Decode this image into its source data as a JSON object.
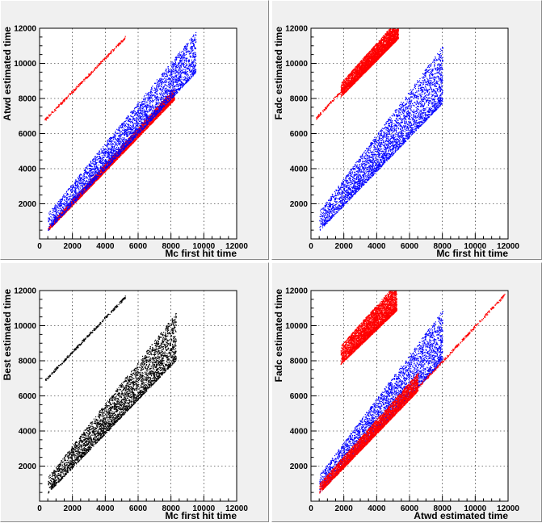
{
  "chart_data": [
    {
      "type": "scatter",
      "title": "",
      "xlabel": "Mc first hit time",
      "ylabel": "Atwd estimated time",
      "xlim": [
        0,
        12000
      ],
      "ylim": [
        0,
        12000
      ],
      "xticks": [
        "0",
        "2000",
        "4000",
        "6000",
        "8000",
        "10000",
        "12000"
      ],
      "yticks": [
        "2000",
        "4000",
        "6000",
        "8000",
        "10000",
        "12000"
      ],
      "grid": true,
      "series": [
        {
          "color": "#ff0000",
          "shape": "band",
          "x_range": [
            500,
            8200
          ],
          "lower_slope": 0.97,
          "lower_offset": 0,
          "upper_slope": 1.03,
          "upper_offset": 200
        },
        {
          "color": "#ff0000",
          "shape": "line",
          "x_range": [
            300,
            5200
          ],
          "slope": 0.96,
          "offset": 6500
        },
        {
          "color": "#0000ff",
          "shape": "band",
          "x_range": [
            500,
            9500
          ],
          "lower_slope": 1.0,
          "lower_offset": 0,
          "upper_slope": 1.15,
          "upper_offset": 900
        }
      ]
    },
    {
      "type": "scatter",
      "title": "",
      "xlabel": "Mc first hit time",
      "ylabel": "Fadc estimated time",
      "xlim": [
        0,
        12000
      ],
      "ylim": [
        0,
        12000
      ],
      "xticks": [
        "0",
        "2000",
        "4000",
        "6000",
        "8000",
        "10000",
        "12000"
      ],
      "yticks": [
        "2000",
        "4000",
        "6000",
        "8000",
        "10000",
        "12000"
      ],
      "grid": true,
      "series": [
        {
          "color": "#0000ff",
          "shape": "band",
          "x_range": [
            500,
            8000
          ],
          "lower_slope": 0.97,
          "lower_offset": 0,
          "upper_slope": 1.25,
          "upper_offset": 1000
        },
        {
          "color": "#ff0000",
          "shape": "line",
          "x_range": [
            300,
            5300
          ],
          "slope": 1.0,
          "offset": 6600
        },
        {
          "color": "#ff0000",
          "shape": "band",
          "x_range": [
            1800,
            5300
          ],
          "lower_slope": 0.95,
          "lower_offset": 6400,
          "upper_slope": 1.05,
          "upper_offset": 7000
        }
      ]
    },
    {
      "type": "scatter",
      "title": "",
      "xlabel": "Mc first hit time",
      "ylabel": "Best estimated time",
      "xlim": [
        0,
        12000
      ],
      "ylim": [
        0,
        12000
      ],
      "xticks": [
        "0",
        "2000",
        "4000",
        "6000",
        "8000",
        "10000",
        "12000"
      ],
      "yticks": [
        "2000",
        "4000",
        "6000",
        "8000",
        "10000",
        "12000"
      ],
      "grid": true,
      "series": [
        {
          "color": "#000000",
          "shape": "band",
          "x_range": [
            500,
            8300
          ],
          "lower_slope": 0.97,
          "lower_offset": 0,
          "upper_slope": 1.2,
          "upper_offset": 800
        },
        {
          "color": "#000000",
          "shape": "line",
          "x_range": [
            300,
            5200
          ],
          "slope": 0.97,
          "offset": 6600
        }
      ]
    },
    {
      "type": "scatter",
      "title": "",
      "xlabel": "Atwd estimated time",
      "ylabel": "Fadc estimated time",
      "xlim": [
        0,
        12000
      ],
      "ylim": [
        0,
        12000
      ],
      "xticks": [
        "0",
        "2000",
        "4000",
        "6000",
        "8000",
        "10000",
        "12000"
      ],
      "yticks": [
        "2000",
        "4000",
        "6000",
        "8000",
        "10000",
        "12000"
      ],
      "grid": true,
      "series": [
        {
          "color": "#0000ff",
          "shape": "band",
          "x_range": [
            500,
            8000
          ],
          "lower_slope": 1.0,
          "lower_offset": 0,
          "upper_slope": 1.25,
          "upper_offset": 900
        },
        {
          "color": "#ff0000",
          "shape": "band",
          "x_range": [
            500,
            6500
          ],
          "lower_slope": 0.97,
          "lower_offset": 0,
          "upper_slope": 1.05,
          "upper_offset": 500
        },
        {
          "color": "#ff0000",
          "shape": "line",
          "x_range": [
            6000,
            11800
          ],
          "slope": 1.0,
          "offset": 0
        },
        {
          "color": "#ff0000",
          "shape": "band",
          "x_range": [
            1800,
            5200
          ],
          "lower_slope": 0.9,
          "lower_offset": 6200,
          "upper_slope": 1.05,
          "upper_offset": 7000
        }
      ]
    }
  ]
}
